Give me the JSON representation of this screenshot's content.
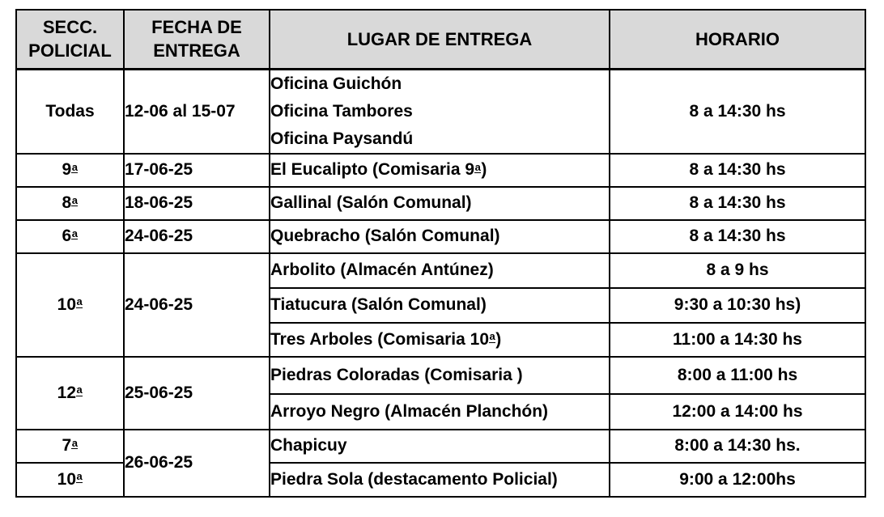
{
  "colors": {
    "header_bg": "#d9d9d9",
    "border": "#000000",
    "text": "#000000"
  },
  "table": {
    "headers": {
      "secc": "SECC. POLICIAL",
      "fecha": "FECHA DE ENTREGA",
      "lugar": "LUGAR DE ENTREGA",
      "horario": "HORARIO"
    },
    "rows": [
      {
        "secc": "Todas",
        "fecha": "12-06 al 15-07",
        "lugares": [
          "Oficina Guichón",
          "Oficina Tambores",
          "Oficina Paysandú"
        ],
        "horario": "8 a 14:30 hs"
      },
      {
        "secc": "9ª",
        "fecha": "17-06-25",
        "lugar": "El Eucalipto (Comisaria 9ª)",
        "horario": "8 a 14:30 hs"
      },
      {
        "secc": "8ª",
        "fecha": "18-06-25",
        "lugar": "Gallinal (Salón Comunal)",
        "horario": "8 a 14:30 hs"
      },
      {
        "secc": "6ª",
        "fecha": "24-06-25",
        "lugar": "Quebracho (Salón Comunal)",
        "horario": "8 a 14:30 hs"
      },
      {
        "secc": "10ª",
        "fecha": "24-06-25",
        "entries": [
          {
            "lugar": "Arbolito (Almacén Antúnez)",
            "horario": "8 a 9 hs"
          },
          {
            "lugar": "Tiatucura (Salón Comunal)",
            "horario": "9:30 a 10:30 hs)"
          },
          {
            "lugar": "Tres Arboles (Comisaria 10ª)",
            "horario": "11:00 a 14:30 hs"
          }
        ]
      },
      {
        "secc": "12ª",
        "fecha": "25-06-25",
        "entries": [
          {
            "lugar": "Piedras Coloradas (Comisaria )",
            "horario": "8:00 a 11:00 hs"
          },
          {
            "lugar": "Arroyo Negro (Almacén Planchón)",
            "horario": "12:00 a 14:00 hs"
          }
        ]
      },
      {
        "fecha": "26-06-25",
        "entries": [
          {
            "secc": "7ª",
            "lugar": "Chapicuy",
            "horario": "8:00 a 14:30 hs."
          },
          {
            "secc": "10ª",
            "lugar": "Piedra Sola (destacamento Policial)",
            "horario": "9:00 a 12:00hs"
          }
        ]
      }
    ]
  }
}
